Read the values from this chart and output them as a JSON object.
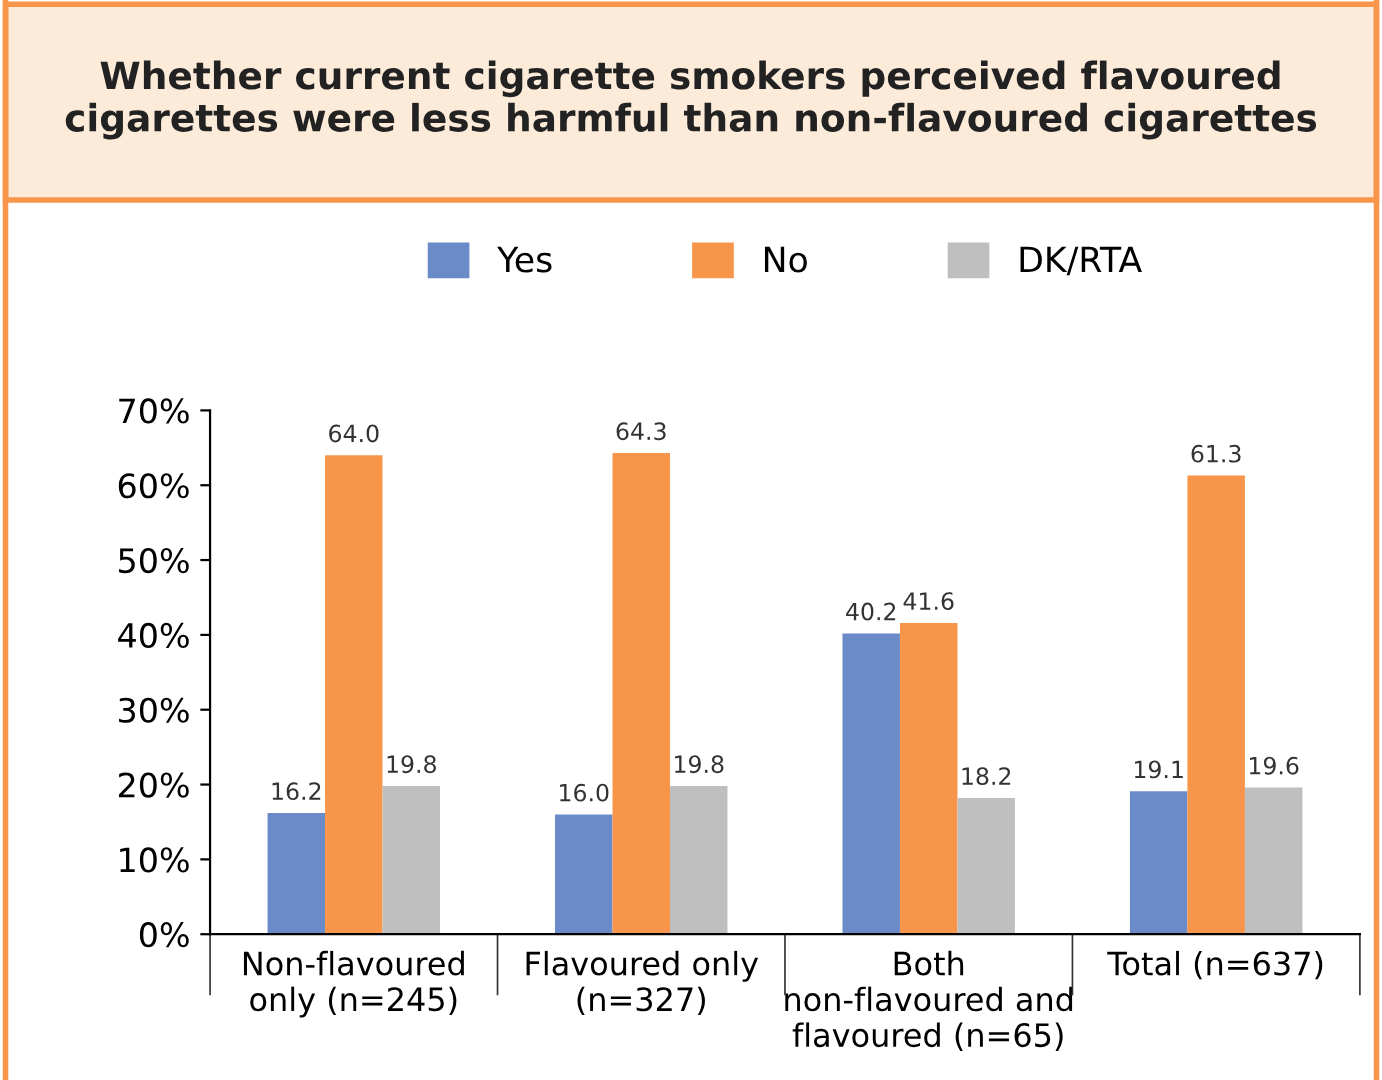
{
  "chart_data": {
    "type": "bar",
    "title": "Whether current cigarette smokers perceived flavoured\ncigarettes were less harmful than non-flavoured cigarettes",
    "categories": [
      "Non-flavoured\nonly (n=245)",
      "Flavoured only\n(n=327)",
      "Both\nnon-flavoured and\nflavoured (n=65)",
      "Total (n=637)"
    ],
    "series": [
      {
        "name": "Yes",
        "color": "#6a8bc8",
        "values": [
          16.2,
          16.0,
          40.2,
          19.1
        ],
        "value_labels": [
          "16.2",
          "16.0",
          "40.2",
          "19.1"
        ]
      },
      {
        "name": "No",
        "color": "#f7964a",
        "values": [
          64.0,
          64.3,
          41.6,
          61.3
        ],
        "value_labels": [
          "64.0",
          "64.3",
          "41.6",
          "61.3"
        ]
      },
      {
        "name": "DK/RTA",
        "color": "#bfbfbf",
        "values": [
          19.8,
          19.8,
          18.2,
          19.6
        ],
        "value_labels": [
          "19.8",
          "19.8",
          "18.2",
          "19.6"
        ]
      }
    ],
    "ylim": [
      0,
      70
    ],
    "yticks": [
      {
        "value": 0,
        "label": "0%"
      },
      {
        "value": 10,
        "label": "10%"
      },
      {
        "value": 20,
        "label": "20%"
      },
      {
        "value": 30,
        "label": "30%"
      },
      {
        "value": 40,
        "label": "40%"
      },
      {
        "value": 50,
        "label": "50%"
      },
      {
        "value": 60,
        "label": "60%"
      },
      {
        "value": 70,
        "label": "70%"
      }
    ],
    "legend": "top",
    "grid": false
  }
}
